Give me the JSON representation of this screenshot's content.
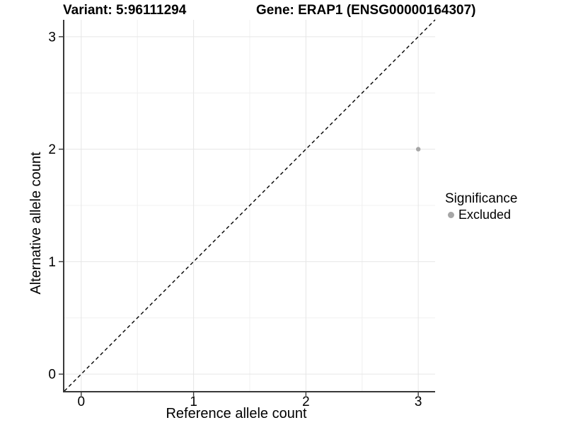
{
  "chart_data": {
    "type": "scatter",
    "titles": {
      "left": "Variant: 5:96111294",
      "right": "Gene: ERAP1 (ENSG00000164307)"
    },
    "xlabel": "Reference allele count",
    "ylabel": "Alternative allele count",
    "xlim": [
      -0.15,
      3.15
    ],
    "ylim": [
      -0.15,
      3.15
    ],
    "xticks": [
      0,
      1,
      2,
      3
    ],
    "yticks": [
      0,
      1,
      2,
      3
    ],
    "minor_ticks_x": [
      0.5,
      1.5,
      2.5
    ],
    "minor_ticks_y": [
      0.5,
      1.5,
      2.5
    ],
    "grid": true,
    "points": [
      {
        "x": 3,
        "y": 2,
        "significance": "Excluded"
      }
    ],
    "identity_line": {
      "slope": 1,
      "intercept": 0,
      "style": "dashed"
    },
    "legend": {
      "title": "Significance",
      "position": "right",
      "entries": [
        {
          "label": "Excluded",
          "color": "#a6a6a6"
        }
      ]
    }
  },
  "colors": {
    "background": "#ffffff",
    "grid_major": "#e6e6e6",
    "grid_minor": "#f0f0f0",
    "axis_line": "#383838",
    "tick_mark": "#383838",
    "text": "#000000",
    "identity_line": "#000000",
    "excluded_point": "#a6a6a6"
  }
}
